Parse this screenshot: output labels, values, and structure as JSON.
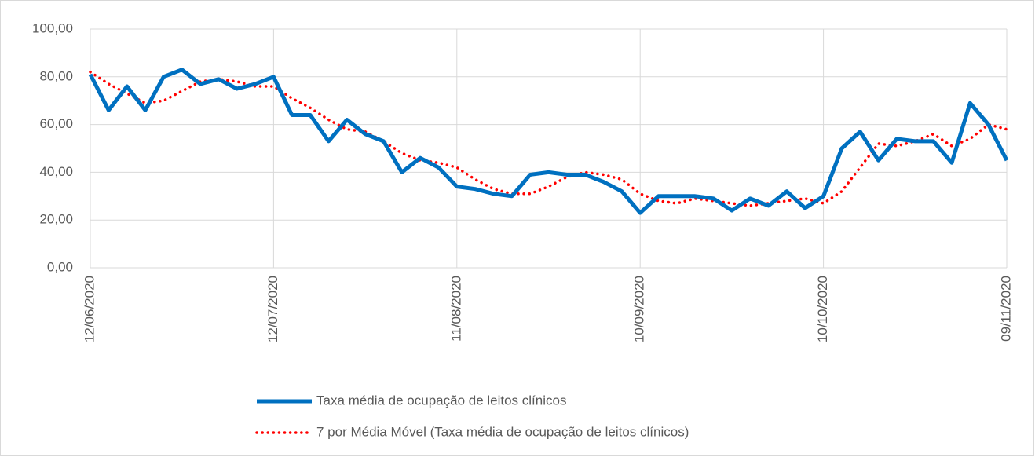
{
  "chart_data": {
    "type": "line",
    "categories": [
      "12/06/2020",
      null,
      null,
      null,
      null,
      null,
      null,
      null,
      null,
      null,
      "12/07/2020",
      null,
      null,
      null,
      null,
      null,
      null,
      null,
      null,
      null,
      "11/08/2020",
      null,
      null,
      null,
      null,
      null,
      null,
      null,
      null,
      null,
      "10/09/2020",
      null,
      null,
      null,
      null,
      null,
      null,
      null,
      null,
      null,
      "10/10/2020",
      null,
      null,
      null,
      null,
      null,
      null,
      null,
      null,
      null,
      "09/11/2020"
    ],
    "series": [
      {
        "name": "Taxa média de ocupação de leitos clínicos",
        "color": "#0070c0",
        "style": "solid",
        "values": [
          81,
          66,
          76,
          66,
          80,
          83,
          77,
          79,
          75,
          77,
          80,
          64,
          64,
          53,
          62,
          56,
          53,
          40,
          46,
          42,
          34,
          33,
          31,
          30,
          39,
          40,
          39,
          39,
          36,
          32,
          23,
          30,
          30,
          30,
          29,
          24,
          29,
          26,
          32,
          25,
          30,
          50,
          57,
          45,
          54,
          53,
          53,
          44,
          69,
          60,
          45
        ]
      },
      {
        "name": "7 por Média Móvel (Taxa média de ocupação de leitos clínicos)",
        "color": "#ff0000",
        "style": "dotted",
        "values": [
          82,
          77,
          73,
          69,
          70,
          74,
          78,
          79,
          78,
          76,
          76,
          71,
          67,
          62,
          58,
          57,
          53,
          48,
          45,
          44,
          42,
          37,
          33,
          31,
          31,
          34,
          38,
          40,
          39,
          37,
          31,
          28,
          27,
          29,
          28,
          27,
          26,
          27,
          28,
          29,
          27,
          32,
          42,
          52,
          51,
          53,
          56,
          51,
          54,
          60,
          58
        ]
      }
    ],
    "ylim": [
      0,
      100
    ],
    "yticks": [
      {
        "value": 0,
        "label": "0,00"
      },
      {
        "value": 20,
        "label": "20,00"
      },
      {
        "value": 40,
        "label": "40,00"
      },
      {
        "value": 60,
        "label": "60,00"
      },
      {
        "value": 80,
        "label": "80,00"
      },
      {
        "value": 100,
        "label": "100,00"
      }
    ],
    "grid": true,
    "legend": "bottom"
  }
}
